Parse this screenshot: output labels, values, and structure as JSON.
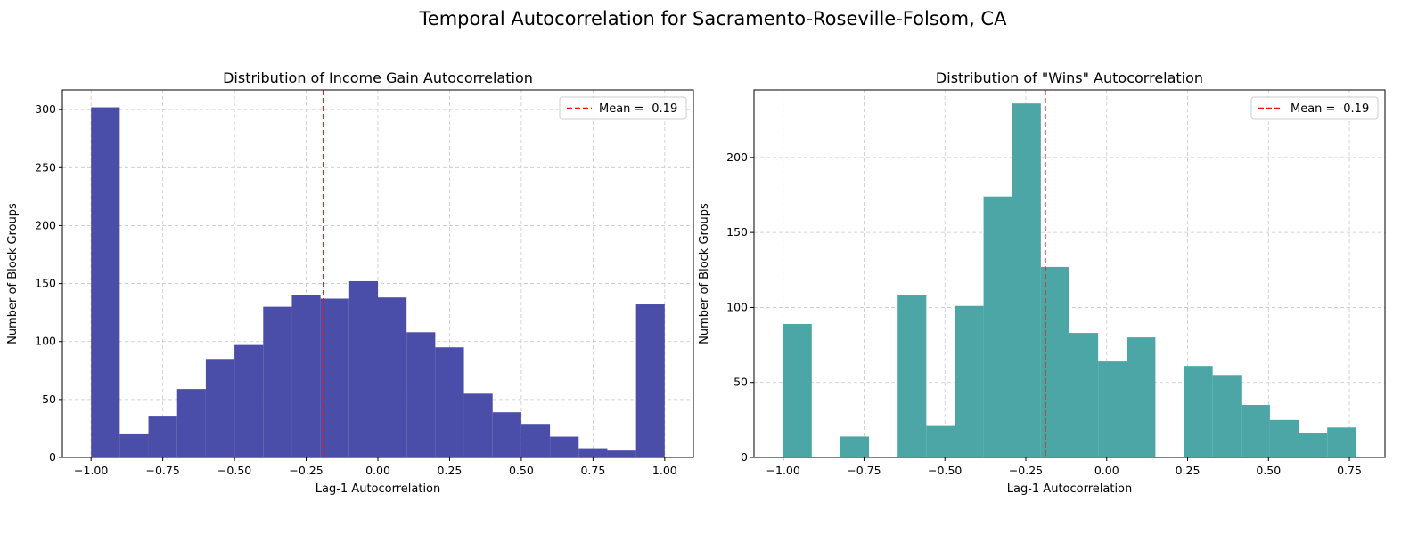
{
  "title": "Temporal Autocorrelation for Sacramento-Roseville-Folsom, CA",
  "colors": {
    "left_bars": "#4b4ea8",
    "right_bars": "#4ca6a6",
    "mean_line": "#ee1111",
    "grid": "#c8c8c8"
  },
  "chart_data": [
    {
      "type": "bar",
      "title": "Distribution of Income Gain Autocorrelation",
      "xlabel": "Lag-1 Autocorrelation",
      "ylabel": "Number of Block Groups",
      "xlim": [
        -1.1,
        1.1
      ],
      "ylim": [
        0,
        317
      ],
      "xticks": [
        -1.0,
        -0.75,
        -0.5,
        -0.25,
        0.0,
        0.25,
        0.5,
        0.75,
        1.0
      ],
      "xtick_labels": [
        "−1.00",
        "−0.75",
        "−0.50",
        "−0.25",
        "0.00",
        "0.25",
        "0.50",
        "0.75",
        "1.00"
      ],
      "yticks": [
        0,
        50,
        100,
        150,
        200,
        250,
        300
      ],
      "ytick_labels": [
        "0",
        "50",
        "100",
        "150",
        "200",
        "250",
        "300"
      ],
      "bin_edges": [
        -1.0,
        -0.9,
        -0.8,
        -0.7,
        -0.6,
        -0.5,
        -0.4,
        -0.3,
        -0.2,
        -0.1,
        0.0,
        0.1,
        0.2,
        0.3,
        0.4,
        0.5,
        0.6,
        0.7,
        0.8,
        0.9,
        1.0
      ],
      "counts": [
        302,
        20,
        36,
        59,
        85,
        97,
        130,
        140,
        137,
        152,
        138,
        108,
        95,
        55,
        39,
        29,
        18,
        8,
        6,
        132
      ],
      "mean": -0.19,
      "legend": "Mean = -0.19",
      "legend_position": "top-right",
      "grid": true
    },
    {
      "type": "bar",
      "title": "Distribution of \"Wins\" Autocorrelation",
      "xlabel": "Lag-1 Autocorrelation",
      "ylabel": "Number of Block Groups",
      "xlim": [
        -1.09,
        0.86
      ],
      "ylim": [
        0,
        245
      ],
      "xticks": [
        -1.0,
        -0.75,
        -0.5,
        -0.25,
        0.0,
        0.25,
        0.5,
        0.75
      ],
      "xtick_labels": [
        "−1.00",
        "−0.75",
        "−0.50",
        "−0.25",
        "0.00",
        "0.25",
        "0.50",
        "0.75"
      ],
      "yticks": [
        0,
        50,
        100,
        150,
        200
      ],
      "ytick_labels": [
        "0",
        "50",
        "100",
        "150",
        "200"
      ],
      "bin_edges": [
        -1.0,
        -0.9115,
        -0.823,
        -0.7345,
        -0.646,
        -0.5575,
        -0.469,
        -0.3805,
        -0.292,
        -0.2035,
        -0.115,
        -0.0265,
        0.062,
        0.1505,
        0.239,
        0.3275,
        0.416,
        0.5045,
        0.593,
        0.6815,
        0.77
      ],
      "counts": [
        89,
        0,
        14,
        0,
        108,
        21,
        101,
        174,
        236,
        127,
        83,
        64,
        80,
        0,
        61,
        55,
        35,
        25,
        16,
        20
      ],
      "mean": -0.19,
      "legend": "Mean = -0.19",
      "legend_position": "top-right",
      "grid": true
    }
  ]
}
